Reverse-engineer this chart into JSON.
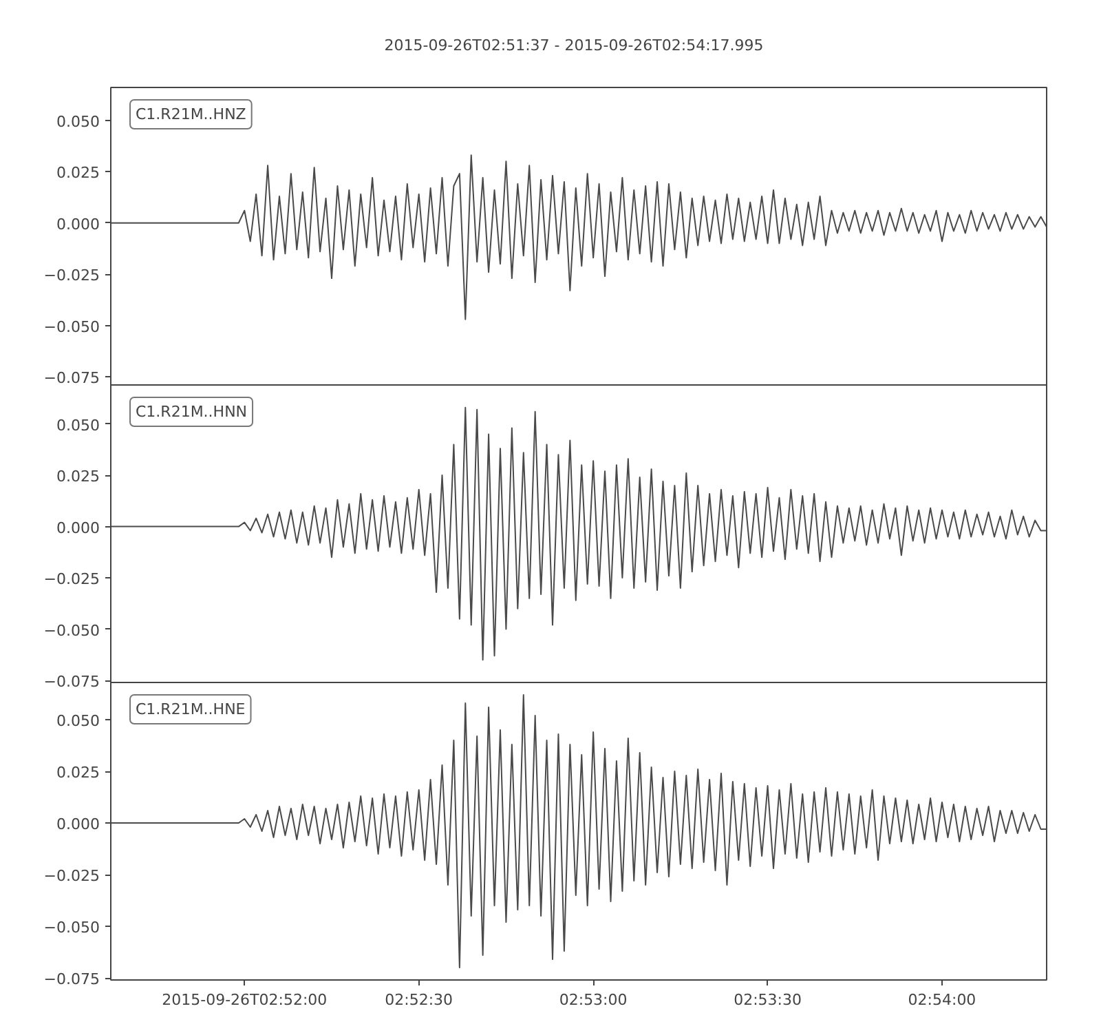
{
  "chart_data": [
    {
      "type": "line",
      "title": "2015-09-26T02:51:37  -  2015-09-26T02:54:17.995",
      "annotations": [
        "C1.R21M..HNZ"
      ],
      "tick_labels": "y",
      "xlim": [
        "2015-09-26T02:51:37",
        "2015-09-26T02:54:17.995"
      ],
      "ylim": [
        -0.079,
        0.066
      ],
      "yticks": [
        {
          "value": -0.075,
          "label": "−0.075"
        },
        {
          "value": -0.05,
          "label": "−0.050"
        },
        {
          "value": -0.025,
          "label": "−0.025"
        },
        {
          "value": 0,
          "label": "0.000"
        },
        {
          "value": 0.025,
          "label": "0.025"
        },
        {
          "value": 0.05,
          "label": "0.050"
        }
      ],
      "x": [
        "2015-09-26T02:51:37",
        "2015-09-26T02:51:59",
        "2015-09-26T02:52:00",
        "2015-09-26T02:52:01",
        "2015-09-26T02:52:02",
        "2015-09-26T02:52:03",
        "2015-09-26T02:52:04",
        "2015-09-26T02:52:05",
        "2015-09-26T02:52:06",
        "2015-09-26T02:52:07",
        "2015-09-26T02:52:08",
        "2015-09-26T02:52:09",
        "2015-09-26T02:52:10",
        "2015-09-26T02:52:11",
        "2015-09-26T02:52:12",
        "2015-09-26T02:52:13",
        "2015-09-26T02:52:14",
        "2015-09-26T02:52:15",
        "2015-09-26T02:52:16",
        "2015-09-26T02:52:17",
        "2015-09-26T02:52:18",
        "2015-09-26T02:52:19",
        "2015-09-26T02:52:20",
        "2015-09-26T02:52:21",
        "2015-09-26T02:52:22",
        "2015-09-26T02:52:23",
        "2015-09-26T02:52:24",
        "2015-09-26T02:52:25",
        "2015-09-26T02:52:26",
        "2015-09-26T02:52:27",
        "2015-09-26T02:52:28",
        "2015-09-26T02:52:29",
        "2015-09-26T02:52:30",
        "2015-09-26T02:52:31",
        "2015-09-26T02:52:32",
        "2015-09-26T02:52:33",
        "2015-09-26T02:52:34",
        "2015-09-26T02:52:35",
        "2015-09-26T02:52:36",
        "2015-09-26T02:52:37",
        "2015-09-26T02:52:38",
        "2015-09-26T02:52:39",
        "2015-09-26T02:52:40",
        "2015-09-26T02:52:41",
        "2015-09-26T02:52:42",
        "2015-09-26T02:52:43",
        "2015-09-26T02:52:44",
        "2015-09-26T02:52:45",
        "2015-09-26T02:52:46",
        "2015-09-26T02:52:47",
        "2015-09-26T02:52:48",
        "2015-09-26T02:52:49",
        "2015-09-26T02:52:50",
        "2015-09-26T02:52:51",
        "2015-09-26T02:52:52",
        "2015-09-26T02:52:53",
        "2015-09-26T02:52:54",
        "2015-09-26T02:52:55",
        "2015-09-26T02:52:56",
        "2015-09-26T02:52:57",
        "2015-09-26T02:52:58",
        "2015-09-26T02:52:59",
        "2015-09-26T02:53:00",
        "2015-09-26T02:53:01",
        "2015-09-26T02:53:02",
        "2015-09-26T02:53:03",
        "2015-09-26T02:53:04",
        "2015-09-26T02:53:05",
        "2015-09-26T02:53:06",
        "2015-09-26T02:53:07",
        "2015-09-26T02:53:08",
        "2015-09-26T02:53:09",
        "2015-09-26T02:53:10",
        "2015-09-26T02:53:11",
        "2015-09-26T02:53:12",
        "2015-09-26T02:53:13",
        "2015-09-26T02:53:14",
        "2015-09-26T02:53:15",
        "2015-09-26T02:53:16",
        "2015-09-26T02:53:17",
        "2015-09-26T02:53:18",
        "2015-09-26T02:53:19",
        "2015-09-26T02:53:20",
        "2015-09-26T02:53:21",
        "2015-09-26T02:53:22",
        "2015-09-26T02:53:23",
        "2015-09-26T02:53:24",
        "2015-09-26T02:53:25",
        "2015-09-26T02:53:26",
        "2015-09-26T02:53:27",
        "2015-09-26T02:53:28",
        "2015-09-26T02:53:29",
        "2015-09-26T02:53:30",
        "2015-09-26T02:53:31",
        "2015-09-26T02:53:32",
        "2015-09-26T02:53:33",
        "2015-09-26T02:53:34",
        "2015-09-26T02:53:35",
        "2015-09-26T02:53:36",
        "2015-09-26T02:53:37",
        "2015-09-26T02:53:38",
        "2015-09-26T02:53:39",
        "2015-09-26T02:53:40",
        "2015-09-26T02:53:41",
        "2015-09-26T02:53:42",
        "2015-09-26T02:53:43",
        "2015-09-26T02:53:44",
        "2015-09-26T02:53:45",
        "2015-09-26T02:53:46",
        "2015-09-26T02:53:47",
        "2015-09-26T02:53:48",
        "2015-09-26T02:53:49",
        "2015-09-26T02:53:50",
        "2015-09-26T02:53:51",
        "2015-09-26T02:53:52",
        "2015-09-26T02:53:53",
        "2015-09-26T02:53:54",
        "2015-09-26T02:53:55",
        "2015-09-26T02:53:56",
        "2015-09-26T02:53:57",
        "2015-09-26T02:53:58",
        "2015-09-26T02:53:59",
        "2015-09-26T02:54:00",
        "2015-09-26T02:54:01",
        "2015-09-26T02:54:02",
        "2015-09-26T02:54:03",
        "2015-09-26T02:54:04",
        "2015-09-26T02:54:05",
        "2015-09-26T02:54:06",
        "2015-09-26T02:54:07",
        "2015-09-26T02:54:08",
        "2015-09-26T02:54:09",
        "2015-09-26T02:54:10",
        "2015-09-26T02:54:11",
        "2015-09-26T02:54:12",
        "2015-09-26T02:54:13",
        "2015-09-26T02:54:14",
        "2015-09-26T02:54:15",
        "2015-09-26T02:54:16",
        "2015-09-26T02:54:17",
        "2015-09-26T02:54:17.995"
      ],
      "series": [
        {
          "color": "#4a4a4a",
          "values": [
            0,
            0,
            0.006,
            -0.009,
            0.014,
            -0.016,
            0.028,
            -0.018,
            0.013,
            -0.015,
            0.024,
            -0.013,
            0.015,
            -0.017,
            0.027,
            -0.014,
            0.012,
            -0.027,
            0.018,
            -0.013,
            0.016,
            -0.021,
            0.014,
            -0.012,
            0.022,
            -0.016,
            0.011,
            -0.014,
            0.013,
            -0.018,
            0.019,
            -0.012,
            0.014,
            -0.019,
            0.017,
            -0.015,
            0.022,
            -0.021,
            0.018,
            0.024,
            -0.047,
            0.033,
            -0.019,
            0.022,
            -0.024,
            0.016,
            -0.02,
            0.03,
            -0.027,
            0.019,
            -0.016,
            0.028,
            -0.029,
            0.021,
            -0.018,
            0.023,
            -0.015,
            0.02,
            -0.033,
            0.017,
            -0.021,
            0.024,
            -0.017,
            0.019,
            -0.026,
            0.015,
            -0.014,
            0.022,
            -0.018,
            0.016,
            -0.015,
            0.018,
            -0.019,
            0.02,
            -0.021,
            0.019,
            -0.013,
            0.015,
            -0.017,
            0.012,
            -0.011,
            0.013,
            -0.009,
            0.011,
            -0.01,
            0.014,
            -0.008,
            0.012,
            -0.009,
            0.01,
            -0.008,
            0.013,
            -0.01,
            0.016,
            -0.01,
            0.012,
            -0.008,
            0.009,
            -0.011,
            0.01,
            -0.008,
            0.013,
            -0.011,
            0.006,
            -0.005,
            0.005,
            -0.004,
            0.006,
            -0.005,
            0.005,
            -0.004,
            0.006,
            -0.006,
            0.005,
            -0.004,
            0.007,
            -0.004,
            0.005,
            -0.005,
            0.004,
            -0.004,
            0.006,
            -0.009,
            0.005,
            -0.004,
            0.004,
            -0.005,
            0.006,
            -0.004,
            0.005,
            -0.003,
            0.004,
            -0.004,
            0.005,
            -0.003,
            0.004,
            -0.003,
            0.003,
            -0.002,
            0.003,
            -0.002
          ]
        }
      ]
    },
    {
      "type": "line",
      "annotations": [
        "C1.R21M..HNN"
      ],
      "tick_labels": "y",
      "xlim": [
        "2015-09-26T02:51:37",
        "2015-09-26T02:54:17.995"
      ],
      "ylim": [
        -0.076,
        0.069
      ],
      "yticks": [
        {
          "value": -0.075,
          "label": "−0.075"
        },
        {
          "value": -0.05,
          "label": "−0.050"
        },
        {
          "value": -0.025,
          "label": "−0.025"
        },
        {
          "value": 0,
          "label": "0.000"
        },
        {
          "value": 0.025,
          "label": "0.025"
        },
        {
          "value": 0.05,
          "label": "0.050"
        }
      ],
      "x": [
        "2015-09-26T02:51:37",
        "2015-09-26T02:51:59",
        "2015-09-26T02:52:00",
        "2015-09-26T02:52:01",
        "2015-09-26T02:52:02",
        "2015-09-26T02:52:03",
        "2015-09-26T02:52:04",
        "2015-09-26T02:52:05",
        "2015-09-26T02:52:06",
        "2015-09-26T02:52:07",
        "2015-09-26T02:52:08",
        "2015-09-26T02:52:09",
        "2015-09-26T02:52:10",
        "2015-09-26T02:52:11",
        "2015-09-26T02:52:12",
        "2015-09-26T02:52:13",
        "2015-09-26T02:52:14",
        "2015-09-26T02:52:15",
        "2015-09-26T02:52:16",
        "2015-09-26T02:52:17",
        "2015-09-26T02:52:18",
        "2015-09-26T02:52:19",
        "2015-09-26T02:52:20",
        "2015-09-26T02:52:21",
        "2015-09-26T02:52:22",
        "2015-09-26T02:52:23",
        "2015-09-26T02:52:24",
        "2015-09-26T02:52:25",
        "2015-09-26T02:52:26",
        "2015-09-26T02:52:27",
        "2015-09-26T02:52:28",
        "2015-09-26T02:52:29",
        "2015-09-26T02:52:30",
        "2015-09-26T02:52:31",
        "2015-09-26T02:52:32",
        "2015-09-26T02:52:33",
        "2015-09-26T02:52:34",
        "2015-09-26T02:52:35",
        "2015-09-26T02:52:36",
        "2015-09-26T02:52:37",
        "2015-09-26T02:52:38",
        "2015-09-26T02:52:39",
        "2015-09-26T02:52:40",
        "2015-09-26T02:52:41",
        "2015-09-26T02:52:42",
        "2015-09-26T02:52:43",
        "2015-09-26T02:52:44",
        "2015-09-26T02:52:45",
        "2015-09-26T02:52:46",
        "2015-09-26T02:52:47",
        "2015-09-26T02:52:48",
        "2015-09-26T02:52:49",
        "2015-09-26T02:52:50",
        "2015-09-26T02:52:51",
        "2015-09-26T02:52:52",
        "2015-09-26T02:52:53",
        "2015-09-26T02:52:54",
        "2015-09-26T02:52:55",
        "2015-09-26T02:52:56",
        "2015-09-26T02:52:57",
        "2015-09-26T02:52:58",
        "2015-09-26T02:52:59",
        "2015-09-26T02:53:00",
        "2015-09-26T02:53:01",
        "2015-09-26T02:53:02",
        "2015-09-26T02:53:03",
        "2015-09-26T02:53:04",
        "2015-09-26T02:53:05",
        "2015-09-26T02:53:06",
        "2015-09-26T02:53:07",
        "2015-09-26T02:53:08",
        "2015-09-26T02:53:09",
        "2015-09-26T02:53:10",
        "2015-09-26T02:53:11",
        "2015-09-26T02:53:12",
        "2015-09-26T02:53:13",
        "2015-09-26T02:53:14",
        "2015-09-26T02:53:15",
        "2015-09-26T02:53:16",
        "2015-09-26T02:53:17",
        "2015-09-26T02:53:18",
        "2015-09-26T02:53:19",
        "2015-09-26T02:53:20",
        "2015-09-26T02:53:21",
        "2015-09-26T02:53:22",
        "2015-09-26T02:53:23",
        "2015-09-26T02:53:24",
        "2015-09-26T02:53:25",
        "2015-09-26T02:53:26",
        "2015-09-26T02:53:27",
        "2015-09-26T02:53:28",
        "2015-09-26T02:53:29",
        "2015-09-26T02:53:30",
        "2015-09-26T02:53:31",
        "2015-09-26T02:53:32",
        "2015-09-26T02:53:33",
        "2015-09-26T02:53:34",
        "2015-09-26T02:53:35",
        "2015-09-26T02:53:36",
        "2015-09-26T02:53:37",
        "2015-09-26T02:53:38",
        "2015-09-26T02:53:39",
        "2015-09-26T02:53:40",
        "2015-09-26T02:53:41",
        "2015-09-26T02:53:42",
        "2015-09-26T02:53:43",
        "2015-09-26T02:53:44",
        "2015-09-26T02:53:45",
        "2015-09-26T02:53:46",
        "2015-09-26T02:53:47",
        "2015-09-26T02:53:48",
        "2015-09-26T02:53:49",
        "2015-09-26T02:53:50",
        "2015-09-26T02:53:51",
        "2015-09-26T02:53:52",
        "2015-09-26T02:53:53",
        "2015-09-26T02:53:54",
        "2015-09-26T02:53:55",
        "2015-09-26T02:53:56",
        "2015-09-26T02:53:57",
        "2015-09-26T02:53:58",
        "2015-09-26T02:53:59",
        "2015-09-26T02:54:00",
        "2015-09-26T02:54:01",
        "2015-09-26T02:54:02",
        "2015-09-26T02:54:03",
        "2015-09-26T02:54:04",
        "2015-09-26T02:54:05",
        "2015-09-26T02:54:06",
        "2015-09-26T02:54:07",
        "2015-09-26T02:54:08",
        "2015-09-26T02:54:09",
        "2015-09-26T02:54:10",
        "2015-09-26T02:54:11",
        "2015-09-26T02:54:12",
        "2015-09-26T02:54:13",
        "2015-09-26T02:54:14",
        "2015-09-26T02:54:15",
        "2015-09-26T02:54:16",
        "2015-09-26T02:54:17",
        "2015-09-26T02:54:17.995"
      ],
      "series": [
        {
          "color": "#4a4a4a",
          "values": [
            0,
            0,
            0.002,
            -0.002,
            0.004,
            -0.003,
            0.006,
            -0.005,
            0.007,
            -0.006,
            0.008,
            -0.008,
            0.007,
            -0.009,
            0.01,
            -0.008,
            0.009,
            -0.015,
            0.013,
            -0.01,
            0.011,
            -0.013,
            0.016,
            -0.011,
            0.013,
            -0.012,
            0.015,
            -0.01,
            0.012,
            -0.013,
            0.014,
            -0.011,
            0.018,
            -0.014,
            0.016,
            -0.032,
            0.025,
            -0.03,
            0.04,
            -0.045,
            0.058,
            -0.048,
            0.057,
            -0.065,
            0.045,
            -0.063,
            0.038,
            -0.05,
            0.048,
            -0.04,
            0.036,
            -0.035,
            0.056,
            -0.033,
            0.04,
            -0.048,
            0.035,
            -0.03,
            0.042,
            -0.036,
            0.03,
            -0.028,
            0.032,
            -0.029,
            0.027,
            -0.035,
            0.03,
            -0.025,
            0.033,
            -0.03,
            0.024,
            -0.027,
            0.028,
            -0.031,
            0.022,
            -0.024,
            0.02,
            -0.03,
            0.026,
            -0.022,
            0.02,
            -0.019,
            0.016,
            -0.017,
            0.018,
            -0.014,
            0.015,
            -0.02,
            0.017,
            -0.013,
            0.016,
            -0.015,
            0.019,
            -0.012,
            0.014,
            -0.016,
            0.018,
            -0.011,
            0.015,
            -0.013,
            0.016,
            -0.017,
            0.012,
            -0.015,
            0.01,
            -0.008,
            0.009,
            -0.007,
            0.01,
            -0.009,
            0.008,
            -0.008,
            0.011,
            -0.006,
            0.009,
            -0.014,
            0.01,
            -0.007,
            0.008,
            -0.008,
            0.009,
            -0.006,
            0.008,
            -0.005,
            0.007,
            -0.006,
            0.008,
            -0.005,
            0.006,
            -0.004,
            0.007,
            -0.005,
            0.005,
            -0.006,
            0.008,
            -0.004,
            0.005,
            -0.005,
            0.003,
            -0.002,
            -0.002
          ]
        }
      ]
    },
    {
      "type": "line",
      "annotations": [
        "C1.R21M..HNE"
      ],
      "xlim": [
        "2015-09-26T02:51:37",
        "2015-09-26T02:54:17.995"
      ],
      "xticks": [
        {
          "value": "2015-09-26T02:52:00",
          "label": "2015-09-26T02:52:00"
        },
        {
          "value": "2015-09-26T02:52:30",
          "label": "02:52:30"
        },
        {
          "value": "2015-09-26T02:53:00",
          "label": "02:53:00"
        },
        {
          "value": "2015-09-26T02:53:30",
          "label": "02:53:30"
        },
        {
          "value": "2015-09-26T02:54:00",
          "label": "02:54:00"
        }
      ],
      "ylim": [
        -0.076,
        0.068
      ],
      "yticks": [
        {
          "value": -0.075,
          "label": "−0.075"
        },
        {
          "value": -0.05,
          "label": "−0.050"
        },
        {
          "value": -0.025,
          "label": "−0.025"
        },
        {
          "value": 0,
          "label": "0.000"
        },
        {
          "value": 0.025,
          "label": "0.025"
        },
        {
          "value": 0.05,
          "label": "0.050"
        }
      ],
      "x": [
        "2015-09-26T02:51:37",
        "2015-09-26T02:51:59",
        "2015-09-26T02:52:00",
        "2015-09-26T02:52:01",
        "2015-09-26T02:52:02",
        "2015-09-26T02:52:03",
        "2015-09-26T02:52:04",
        "2015-09-26T02:52:05",
        "2015-09-26T02:52:06",
        "2015-09-26T02:52:07",
        "2015-09-26T02:52:08",
        "2015-09-26T02:52:09",
        "2015-09-26T02:52:10",
        "2015-09-26T02:52:11",
        "2015-09-26T02:52:12",
        "2015-09-26T02:52:13",
        "2015-09-26T02:52:14",
        "2015-09-26T02:52:15",
        "2015-09-26T02:52:16",
        "2015-09-26T02:52:17",
        "2015-09-26T02:52:18",
        "2015-09-26T02:52:19",
        "2015-09-26T02:52:20",
        "2015-09-26T02:52:21",
        "2015-09-26T02:52:22",
        "2015-09-26T02:52:23",
        "2015-09-26T02:52:24",
        "2015-09-26T02:52:25",
        "2015-09-26T02:52:26",
        "2015-09-26T02:52:27",
        "2015-09-26T02:52:28",
        "2015-09-26T02:52:29",
        "2015-09-26T02:52:30",
        "2015-09-26T02:52:31",
        "2015-09-26T02:52:32",
        "2015-09-26T02:52:33",
        "2015-09-26T02:52:34",
        "2015-09-26T02:52:35",
        "2015-09-26T02:52:36",
        "2015-09-26T02:52:37",
        "2015-09-26T02:52:38",
        "2015-09-26T02:52:39",
        "2015-09-26T02:52:40",
        "2015-09-26T02:52:41",
        "2015-09-26T02:52:42",
        "2015-09-26T02:52:43",
        "2015-09-26T02:52:44",
        "2015-09-26T02:52:45",
        "2015-09-26T02:52:46",
        "2015-09-26T02:52:47",
        "2015-09-26T02:52:48",
        "2015-09-26T02:52:49",
        "2015-09-26T02:52:50",
        "2015-09-26T02:52:51",
        "2015-09-26T02:52:52",
        "2015-09-26T02:52:53",
        "2015-09-26T02:52:54",
        "2015-09-26T02:52:55",
        "2015-09-26T02:52:56",
        "2015-09-26T02:52:57",
        "2015-09-26T02:52:58",
        "2015-09-26T02:52:59",
        "2015-09-26T02:53:00",
        "2015-09-26T02:53:01",
        "2015-09-26T02:53:02",
        "2015-09-26T02:53:03",
        "2015-09-26T02:53:04",
        "2015-09-26T02:53:05",
        "2015-09-26T02:53:06",
        "2015-09-26T02:53:07",
        "2015-09-26T02:53:08",
        "2015-09-26T02:53:09",
        "2015-09-26T02:53:10",
        "2015-09-26T02:53:11",
        "2015-09-26T02:53:12",
        "2015-09-26T02:53:13",
        "2015-09-26T02:53:14",
        "2015-09-26T02:53:15",
        "2015-09-26T02:53:16",
        "2015-09-26T02:53:17",
        "2015-09-26T02:53:18",
        "2015-09-26T02:53:19",
        "2015-09-26T02:53:20",
        "2015-09-26T02:53:21",
        "2015-09-26T02:53:22",
        "2015-09-26T02:53:23",
        "2015-09-26T02:53:24",
        "2015-09-26T02:53:25",
        "2015-09-26T02:53:26",
        "2015-09-26T02:53:27",
        "2015-09-26T02:53:28",
        "2015-09-26T02:53:29",
        "2015-09-26T02:53:30",
        "2015-09-26T02:53:31",
        "2015-09-26T02:53:32",
        "2015-09-26T02:53:33",
        "2015-09-26T02:53:34",
        "2015-09-26T02:53:35",
        "2015-09-26T02:53:36",
        "2015-09-26T02:53:37",
        "2015-09-26T02:53:38",
        "2015-09-26T02:53:39",
        "2015-09-26T02:53:40",
        "2015-09-26T02:53:41",
        "2015-09-26T02:53:42",
        "2015-09-26T02:53:43",
        "2015-09-26T02:53:44",
        "2015-09-26T02:53:45",
        "2015-09-26T02:53:46",
        "2015-09-26T02:53:47",
        "2015-09-26T02:53:48",
        "2015-09-26T02:53:49",
        "2015-09-26T02:53:50",
        "2015-09-26T02:53:51",
        "2015-09-26T02:53:52",
        "2015-09-26T02:53:53",
        "2015-09-26T02:53:54",
        "2015-09-26T02:53:55",
        "2015-09-26T02:53:56",
        "2015-09-26T02:53:57",
        "2015-09-26T02:53:58",
        "2015-09-26T02:53:59",
        "2015-09-26T02:54:00",
        "2015-09-26T02:54:01",
        "2015-09-26T02:54:02",
        "2015-09-26T02:54:03",
        "2015-09-26T02:54:04",
        "2015-09-26T02:54:05",
        "2015-09-26T02:54:06",
        "2015-09-26T02:54:07",
        "2015-09-26T02:54:08",
        "2015-09-26T02:54:09",
        "2015-09-26T02:54:10",
        "2015-09-26T02:54:11",
        "2015-09-26T02:54:12",
        "2015-09-26T02:54:13",
        "2015-09-26T02:54:14",
        "2015-09-26T02:54:15",
        "2015-09-26T02:54:16",
        "2015-09-26T02:54:17",
        "2015-09-26T02:54:17.995"
      ],
      "series": [
        {
          "color": "#4a4a4a",
          "values": [
            0,
            0,
            0.002,
            -0.002,
            0.004,
            -0.004,
            0.006,
            -0.007,
            0.008,
            -0.006,
            0.007,
            -0.008,
            0.009,
            -0.006,
            0.008,
            -0.01,
            0.007,
            -0.008,
            0.009,
            -0.012,
            0.01,
            -0.009,
            0.013,
            -0.011,
            0.012,
            -0.015,
            0.014,
            -0.012,
            0.013,
            -0.016,
            0.015,
            -0.013,
            0.016,
            -0.018,
            0.021,
            -0.02,
            0.028,
            -0.03,
            0.04,
            -0.07,
            0.058,
            -0.045,
            0.042,
            -0.064,
            0.056,
            -0.04,
            0.045,
            -0.048,
            0.038,
            -0.042,
            0.062,
            -0.04,
            0.052,
            -0.045,
            0.04,
            -0.066,
            0.043,
            -0.062,
            0.038,
            -0.035,
            0.033,
            -0.04,
            0.044,
            -0.032,
            0.036,
            -0.038,
            0.03,
            -0.033,
            0.041,
            -0.028,
            0.034,
            -0.03,
            0.027,
            -0.024,
            0.022,
            -0.026,
            0.025,
            -0.02,
            0.023,
            -0.022,
            0.026,
            -0.019,
            0.021,
            -0.023,
            0.024,
            -0.03,
            0.02,
            -0.018,
            0.019,
            -0.021,
            0.017,
            -0.016,
            0.018,
            -0.022,
            0.016,
            -0.015,
            0.019,
            -0.017,
            0.014,
            -0.019,
            0.015,
            -0.014,
            0.017,
            -0.016,
            0.015,
            -0.013,
            0.014,
            -0.015,
            0.013,
            -0.012,
            0.016,
            -0.018,
            0.013,
            -0.01,
            0.012,
            -0.009,
            0.011,
            -0.01,
            0.009,
            -0.008,
            0.012,
            -0.009,
            0.01,
            -0.007,
            0.009,
            -0.009,
            0.008,
            -0.008,
            0.007,
            -0.006,
            0.008,
            -0.009,
            0.006,
            -0.005,
            0.006,
            -0.005,
            0.005,
            -0.004,
            0.004,
            -0.003,
            -0.003
          ]
        }
      ]
    }
  ]
}
